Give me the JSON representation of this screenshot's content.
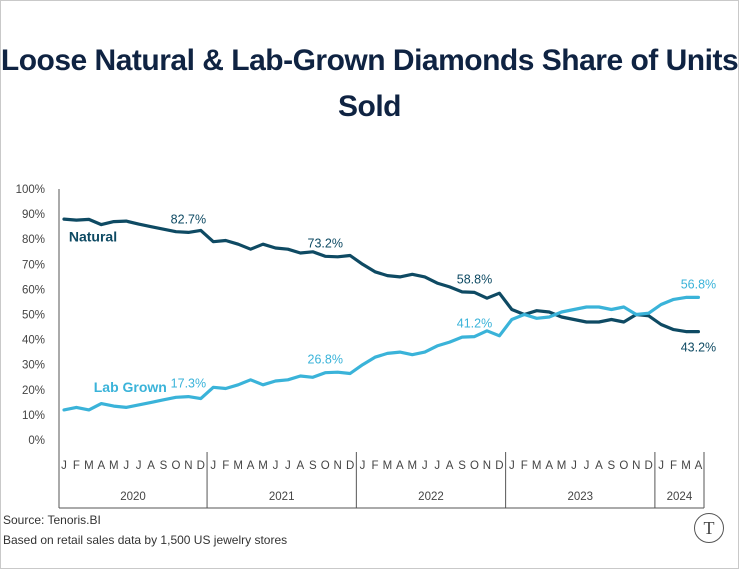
{
  "title": "Loose Natural & Lab-Grown Diamonds Share of Units Sold",
  "source": "Source: Tenoris.BI",
  "note": "Based on retail sales data by 1,500 US jewelry stores",
  "logo_glyph": "T",
  "colors": {
    "natural": "#0e4a63",
    "lab": "#3ab3d9",
    "title": "#0f2342",
    "axis": "#555555"
  },
  "chart_data": {
    "type": "line",
    "title": "Loose Natural & Lab-Grown Diamonds Share of Units Sold",
    "ylim": [
      0,
      100
    ],
    "yticks": [
      "0%",
      "10%",
      "20%",
      "30%",
      "40%",
      "50%",
      "60%",
      "70%",
      "80%",
      "90%",
      "100%"
    ],
    "month_labels": [
      "J",
      "F",
      "M",
      "A",
      "M",
      "J",
      "J",
      "A",
      "S",
      "O",
      "N",
      "D",
      "J",
      "F",
      "M",
      "A",
      "M",
      "J",
      "J",
      "A",
      "S",
      "O",
      "N",
      "D",
      "J",
      "F",
      "M",
      "A",
      "M",
      "J",
      "J",
      "A",
      "S",
      "O",
      "N",
      "D",
      "J",
      "F",
      "M",
      "A",
      "M",
      "J",
      "J",
      "A",
      "S",
      "O",
      "N",
      "D",
      "J",
      "F",
      "M",
      "A"
    ],
    "years": [
      {
        "label": "2020",
        "months": 12
      },
      {
        "label": "2021",
        "months": 12
      },
      {
        "label": "2022",
        "months": 12
      },
      {
        "label": "2023",
        "months": 12
      },
      {
        "label": "2024",
        "months": 4
      }
    ],
    "series": [
      {
        "name": "Natural",
        "values": [
          88.0,
          87.6,
          87.9,
          85.8,
          87.0,
          87.2,
          86.0,
          85.0,
          84.0,
          83.0,
          82.7,
          83.5,
          79.0,
          79.5,
          78.0,
          76.0,
          78.0,
          76.5,
          76.0,
          74.5,
          75.0,
          73.2,
          73.0,
          73.5,
          70.0,
          67.0,
          65.5,
          65.0,
          66.0,
          65.0,
          62.5,
          61.0,
          59.0,
          58.8,
          56.5,
          58.5,
          52.0,
          50.0,
          51.5,
          51.0,
          49.0,
          48.0,
          47.0,
          47.0,
          48.0,
          47.0,
          50.0,
          49.5,
          46.0,
          44.0,
          43.2,
          43.2
        ]
      },
      {
        "name": "Lab Grown",
        "values": [
          12.0,
          13.0,
          12.0,
          14.5,
          13.5,
          13.0,
          14.0,
          15.0,
          16.0,
          17.0,
          17.3,
          16.5,
          21.0,
          20.5,
          22.0,
          24.0,
          22.0,
          23.5,
          24.0,
          25.5,
          25.0,
          26.8,
          27.0,
          26.5,
          30.0,
          33.0,
          34.5,
          35.0,
          34.0,
          35.0,
          37.5,
          39.0,
          41.0,
          41.2,
          43.5,
          41.5,
          48.0,
          50.0,
          48.5,
          49.0,
          51.0,
          52.0,
          53.0,
          53.0,
          52.0,
          53.0,
          50.0,
          50.5,
          54.0,
          56.0,
          56.8,
          56.8
        ]
      }
    ],
    "series_labels": [
      {
        "series": 0,
        "text": "Natural",
        "index": 2
      },
      {
        "series": 1,
        "text": "Lab Grown",
        "index": 4
      }
    ],
    "annotations": [
      {
        "series": 0,
        "index": 10,
        "text": "82.7%",
        "pos": "above"
      },
      {
        "series": 0,
        "index": 21,
        "text": "73.2%",
        "pos": "above"
      },
      {
        "series": 0,
        "index": 33,
        "text": "58.8%",
        "pos": "above"
      },
      {
        "series": 0,
        "index": 51,
        "text": "43.2%",
        "pos": "below"
      },
      {
        "series": 1,
        "index": 10,
        "text": "17.3%",
        "pos": "above"
      },
      {
        "series": 1,
        "index": 21,
        "text": "26.8%",
        "pos": "above"
      },
      {
        "series": 1,
        "index": 33,
        "text": "41.2%",
        "pos": "above"
      },
      {
        "series": 1,
        "index": 51,
        "text": "56.8%",
        "pos": "above"
      }
    ],
    "grid": false,
    "legend": "inline"
  }
}
